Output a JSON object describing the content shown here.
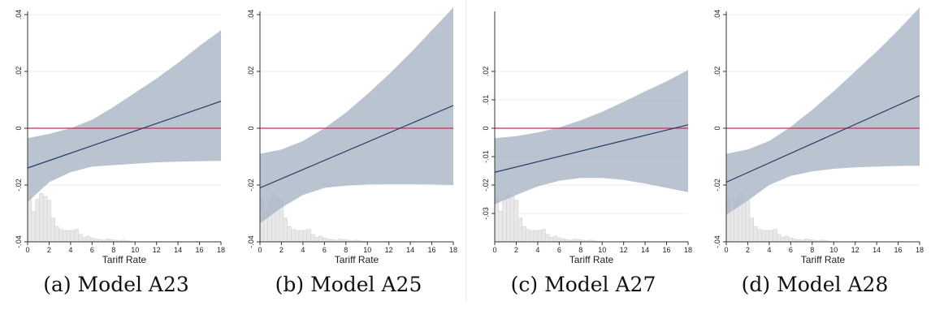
{
  "colors": {
    "band": "#a9b7c6",
    "line": "#1f3f66",
    "zero_line": "#c8325a",
    "histogram": "#e4e4e4",
    "histogram_stroke": "#d4d4d4",
    "axis": "#333333",
    "grid": "#eeeeee"
  },
  "chart_data": [
    {
      "type": "line",
      "caption": "(a) Model A23",
      "xlabel": "Tariff Rate",
      "ylabel": "",
      "xlim": [
        0,
        18
      ],
      "ylim": [
        -0.04,
        0.04
      ],
      "xticks": [
        0,
        2,
        4,
        6,
        8,
        10,
        12,
        14,
        16,
        18
      ],
      "xtick_labels": [
        "0",
        "2",
        "4",
        "6",
        "8",
        "10",
        "12",
        "14",
        "16",
        "18"
      ],
      "yticks": [
        -0.04,
        -0.02,
        0,
        0.02,
        0.04
      ],
      "ytick_labels": [
        "-.04",
        "-.02",
        "0",
        ".02",
        ".04"
      ],
      "reference_line_y": 0,
      "estimate": {
        "x": [
          0,
          18
        ],
        "y": [
          -0.014,
          0.0095
        ]
      },
      "confidence_band": {
        "x": [
          0,
          2,
          4,
          6,
          8,
          10,
          12,
          14,
          16,
          18
        ],
        "upper": [
          -0.0035,
          -0.002,
          0.0,
          0.003,
          0.0075,
          0.0125,
          0.0175,
          0.023,
          0.029,
          0.0345
        ],
        "lower": [
          -0.026,
          -0.019,
          -0.0155,
          -0.0135,
          -0.013,
          -0.0125,
          -0.012,
          -0.0118,
          -0.0116,
          -0.0115
        ]
      },
      "histogram": [
        0.76,
        0.54,
        0.75,
        0.85,
        0.8,
        0.73,
        0.42,
        0.27,
        0.22,
        0.2,
        0.2,
        0.2,
        0.22,
        0.13,
        0.08,
        0.1,
        0.07,
        0.05,
        0.04,
        0.03,
        0.05,
        0.04,
        0.03,
        0.02,
        0.03,
        0.02,
        0.01
      ]
    },
    {
      "type": "line",
      "caption": "(b) Model A25",
      "xlabel": "Tariff Rate",
      "ylabel": "",
      "xlim": [
        0,
        18
      ],
      "ylim": [
        -0.04,
        0.04
      ],
      "xticks": [
        0,
        2,
        4,
        6,
        8,
        10,
        12,
        14,
        16,
        18
      ],
      "xtick_labels": [
        "0",
        "2",
        "4",
        "6",
        "8",
        "10",
        "12",
        "14",
        "16",
        "18"
      ],
      "yticks": [
        -0.04,
        -0.02,
        0,
        0.02,
        0.04
      ],
      "ytick_labels": [
        "-.04",
        "-.02",
        "0",
        ".02",
        ".04"
      ],
      "reference_line_y": 0,
      "estimate": {
        "x": [
          0,
          18
        ],
        "y": [
          -0.021,
          0.008
        ]
      },
      "confidence_band": {
        "x": [
          0,
          2,
          4,
          6,
          8,
          10,
          12,
          14,
          16,
          18
        ],
        "upper": [
          -0.009,
          -0.0075,
          -0.0045,
          0.0,
          0.0055,
          0.012,
          0.019,
          0.0265,
          0.0345,
          0.0425
        ],
        "lower": [
          -0.0335,
          -0.028,
          -0.0235,
          -0.021,
          -0.0202,
          -0.0198,
          -0.0197,
          -0.0197,
          -0.0198,
          -0.02
        ]
      },
      "histogram": [
        0.76,
        0.54,
        0.75,
        0.85,
        0.8,
        0.73,
        0.42,
        0.27,
        0.22,
        0.2,
        0.2,
        0.2,
        0.22,
        0.13,
        0.08,
        0.1,
        0.07,
        0.05,
        0.04,
        0.03,
        0.05,
        0.04,
        0.03,
        0.02,
        0.03,
        0.02,
        0.01
      ]
    },
    {
      "type": "line",
      "caption": "(c) Model A27",
      "xlabel": "Tariff Rate",
      "ylabel": "",
      "xlim": [
        0,
        18
      ],
      "ylim": [
        -0.04,
        0.04
      ],
      "xticks": [
        0,
        2,
        4,
        6,
        8,
        10,
        12,
        14,
        16,
        18
      ],
      "xtick_labels": [
        "0",
        "2",
        "4",
        "6",
        "8",
        "10",
        "12",
        "14",
        "16",
        "18"
      ],
      "yticks": [
        -0.03,
        -0.02,
        -0.01,
        0,
        0.01,
        0.02
      ],
      "ytick_labels": [
        "-.03",
        "-.02",
        "-.01",
        "0",
        ".01",
        ".02"
      ],
      "reference_line_y": 0,
      "estimate": {
        "x": [
          0,
          18
        ],
        "y": [
          -0.0155,
          0.0012
        ]
      },
      "confidence_band": {
        "x": [
          0,
          2,
          4,
          6,
          8,
          10,
          12,
          14,
          16,
          18
        ],
        "upper": [
          -0.0035,
          -0.0028,
          -0.0015,
          0.0003,
          0.0028,
          0.0058,
          0.0093,
          0.013,
          0.0165,
          0.0205
        ],
        "lower": [
          -0.0268,
          -0.0235,
          -0.0205,
          -0.0185,
          -0.0175,
          -0.0175,
          -0.0182,
          -0.0195,
          -0.021,
          -0.0225
        ]
      },
      "histogram": [
        0.76,
        0.54,
        0.75,
        0.85,
        0.8,
        0.73,
        0.42,
        0.27,
        0.22,
        0.2,
        0.2,
        0.2,
        0.22,
        0.13,
        0.08,
        0.1,
        0.07,
        0.05,
        0.04,
        0.03,
        0.05,
        0.04,
        0.03,
        0.02,
        0.03,
        0.02,
        0.01
      ]
    },
    {
      "type": "line",
      "caption": "(d) Model A28",
      "xlabel": "Tariff Rate",
      "ylabel": "",
      "xlim": [
        0,
        18
      ],
      "ylim": [
        -0.04,
        0.04
      ],
      "xticks": [
        0,
        2,
        4,
        6,
        8,
        10,
        12,
        14,
        16,
        18
      ],
      "xtick_labels": [
        "0",
        "2",
        "4",
        "6",
        "8",
        "10",
        "12",
        "14",
        "16",
        "18"
      ],
      "yticks": [
        -0.04,
        -0.02,
        0,
        0.02,
        0.04
      ],
      "ytick_labels": [
        "-.04",
        "-.02",
        "0",
        ".02",
        ".04"
      ],
      "reference_line_y": 0,
      "estimate": {
        "x": [
          0,
          18
        ],
        "y": [
          -0.019,
          0.0115
        ]
      },
      "confidence_band": {
        "x": [
          0,
          2,
          4,
          6,
          8,
          10,
          12,
          14,
          16,
          18
        ],
        "upper": [
          -0.009,
          -0.0075,
          -0.0045,
          0.0005,
          0.0065,
          0.013,
          0.02,
          0.027,
          0.0345,
          0.0425
        ],
        "lower": [
          -0.0305,
          -0.0255,
          -0.02,
          -0.0168,
          -0.0152,
          -0.0143,
          -0.0138,
          -0.0135,
          -0.0133,
          -0.0132
        ]
      },
      "histogram": [
        0.76,
        0.54,
        0.75,
        0.85,
        0.8,
        0.73,
        0.42,
        0.27,
        0.22,
        0.2,
        0.2,
        0.2,
        0.22,
        0.13,
        0.08,
        0.1,
        0.07,
        0.05,
        0.04,
        0.03,
        0.05,
        0.04,
        0.03,
        0.02,
        0.03,
        0.02,
        0.01
      ]
    }
  ]
}
